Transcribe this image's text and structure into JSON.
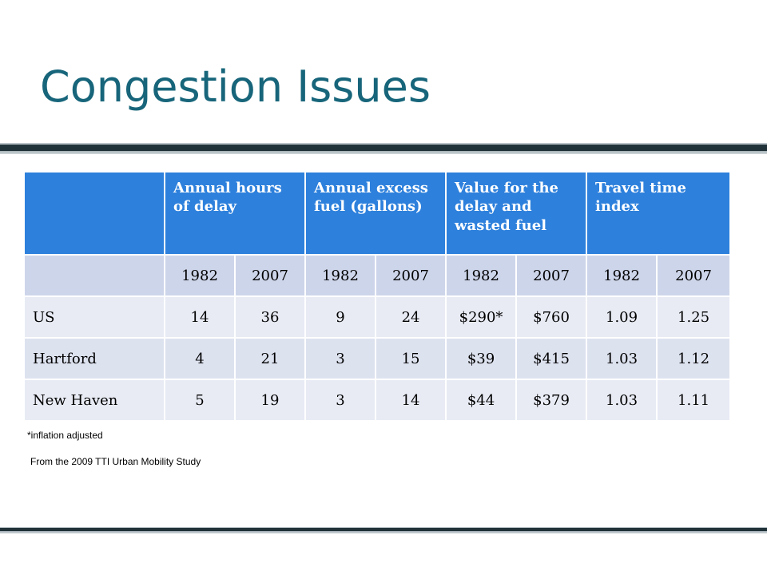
{
  "title": "Congestion Issues",
  "table": {
    "headers": [
      "",
      "Annual hours of delay",
      "Annual excess fuel (gallons)",
      "Value for the delay and wasted fuel",
      "Travel time index"
    ],
    "years": [
      "1982",
      "2007",
      "1982",
      "2007",
      "1982",
      "2007",
      "1982",
      "2007"
    ],
    "rows": [
      {
        "label": "US",
        "values": [
          "14",
          "36",
          "9",
          "24",
          "$290*",
          "$760",
          "1.09",
          "1.25"
        ]
      },
      {
        "label": "Hartford",
        "values": [
          "4",
          "21",
          "3",
          "15",
          "$39",
          "$415",
          "1.03",
          "1.12"
        ]
      },
      {
        "label": "New Haven",
        "values": [
          "5",
          "19",
          "3",
          "14",
          "$44",
          "$379",
          "1.03",
          "1.11"
        ]
      }
    ]
  },
  "footnotes": {
    "inflation": "*inflation adjusted",
    "source": "From the 2009 TTI  Urban Mobility Study"
  },
  "colors": {
    "title": "#17657a",
    "header_fill": "#2d80dc",
    "year_row_fill": "#cdd5ea",
    "row_fill_light": "#e8ebf4",
    "row_fill_dark": "#dde2ef"
  }
}
